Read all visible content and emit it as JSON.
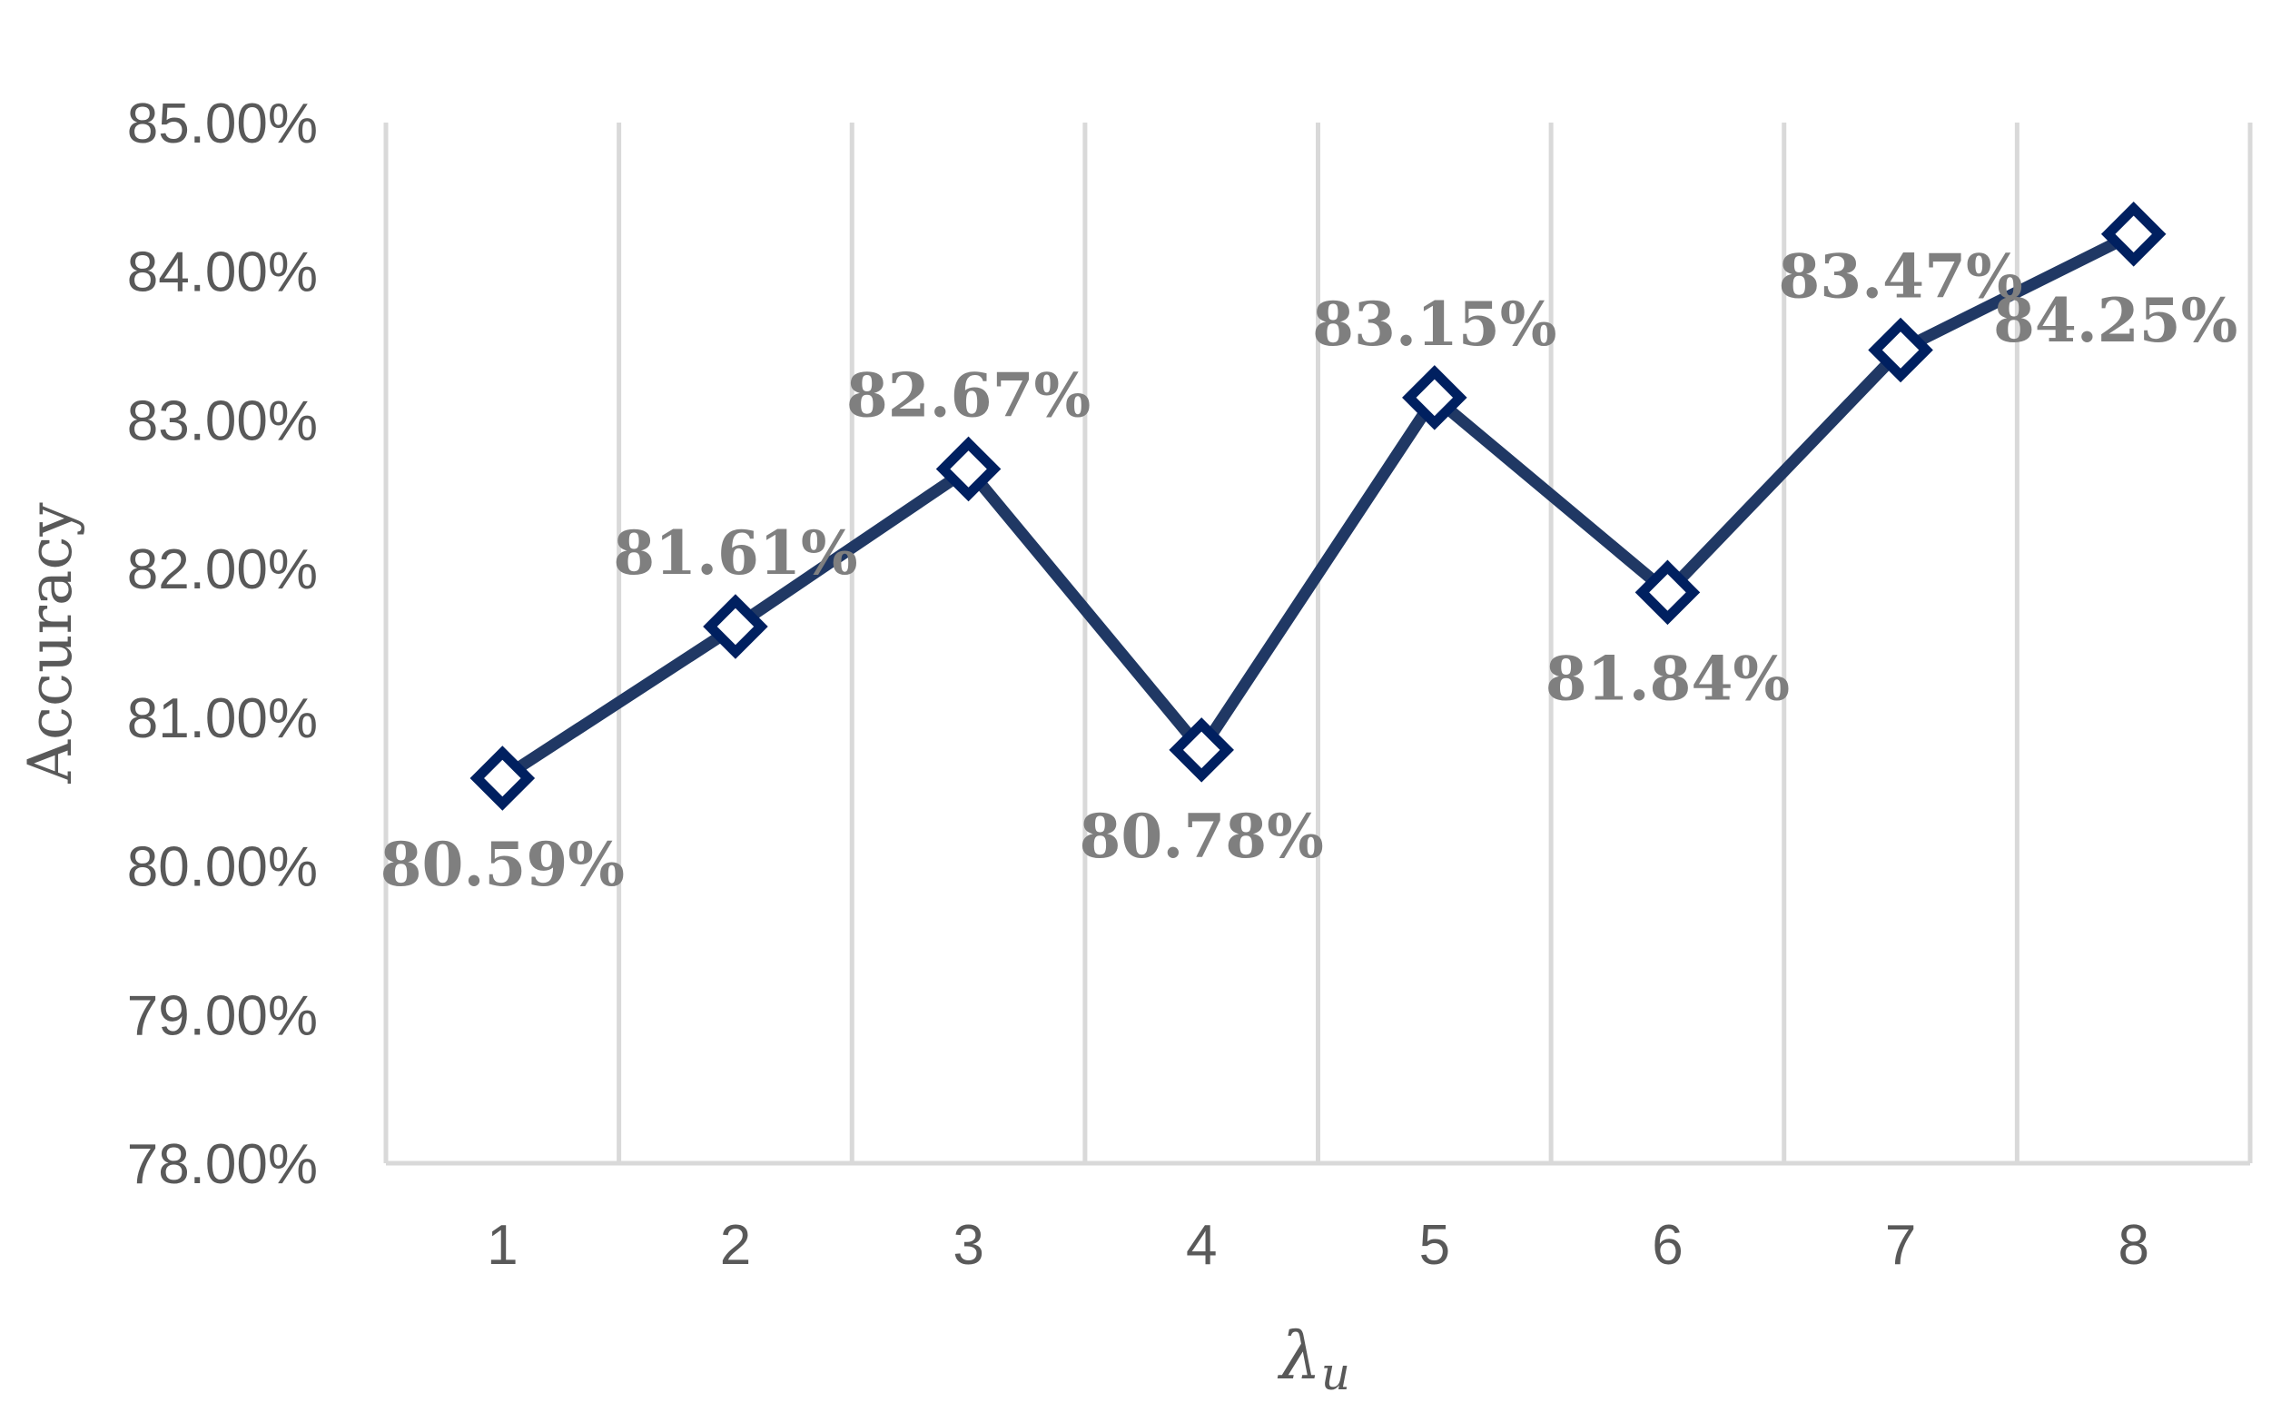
{
  "chart_data": {
    "type": "line",
    "categories": [
      "1",
      "2",
      "3",
      "4",
      "5",
      "6",
      "7",
      "8"
    ],
    "series": [
      {
        "values": [
          80.59,
          81.61,
          82.67,
          80.78,
          83.15,
          81.84,
          83.47,
          84.25
        ],
        "labels": [
          "80.59%",
          "81.61%",
          "82.67%",
          "80.78%",
          "83.15%",
          "81.84%",
          "83.47%",
          "84.25%"
        ],
        "label_positions": [
          "below",
          "above",
          "above",
          "below",
          "above",
          "below",
          "above",
          "below"
        ],
        "line_color": "#203864",
        "marker": "diamond",
        "marker_edge_color": "#002060",
        "marker_fill_color": "#ffffff"
      }
    ],
    "y_ticks": [
      "78.00%",
      "79.00%",
      "80.00%",
      "81.00%",
      "82.00%",
      "83.00%",
      "84.00%",
      "85.00%"
    ],
    "ylim": [
      78,
      85
    ],
    "ylabel": "Accuracy",
    "xlabel": {
      "main": "λ",
      "sub": "u"
    },
    "grid": {
      "vertical": true,
      "horizontal": false,
      "color": "#d9d9d9"
    },
    "legend": "none",
    "colors": {
      "tick_text": "#595959",
      "data_label": "#7f7f7f"
    }
  }
}
